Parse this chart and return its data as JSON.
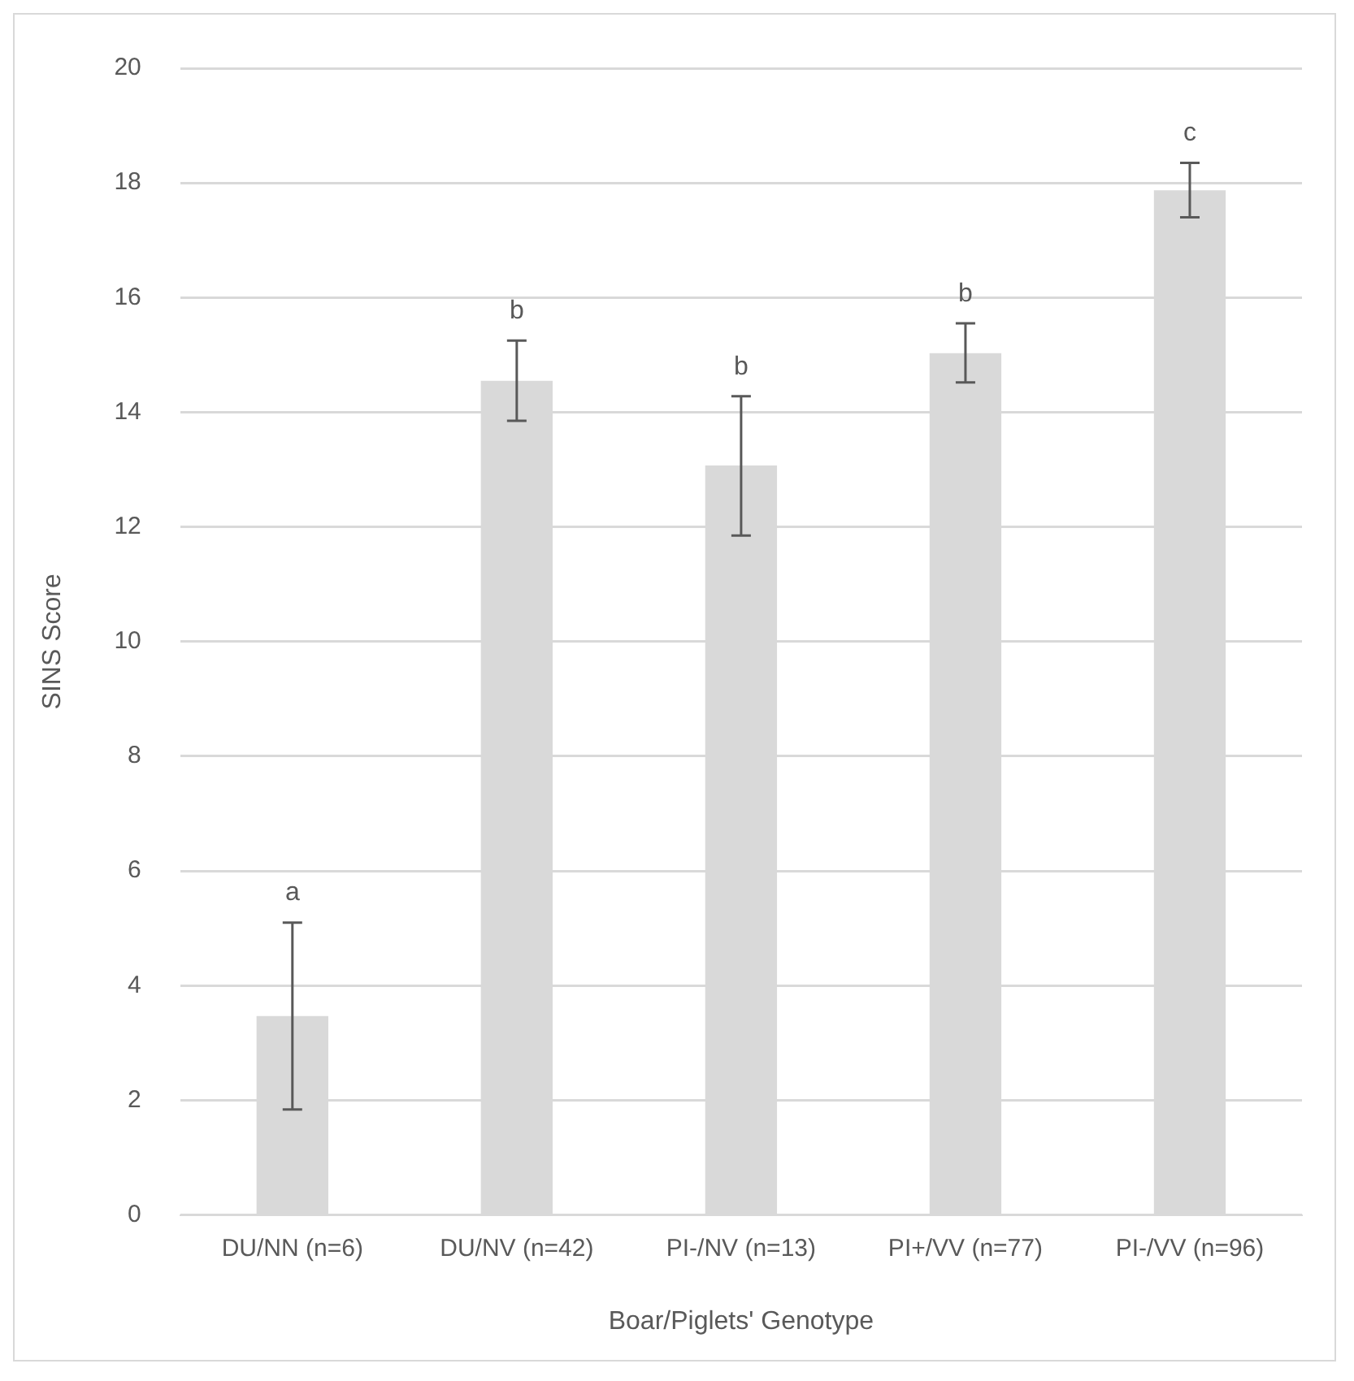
{
  "chart_data": {
    "type": "bar",
    "xlabel": "Boar/Piglets' Genotype",
    "ylabel": "SINS Score",
    "categories": [
      "DU/NN (n=6)",
      "DU/NV (n=42)",
      "PI-/NV (n=13)",
      "PI+/VV (n=77)",
      "PI-/VV (n=96)"
    ],
    "values": [
      3.47,
      14.55,
      13.07,
      15.03,
      17.87
    ],
    "color": "#d9d9d9",
    "errors": [
      [
        1.84,
        5.1
      ],
      [
        13.85,
        15.25
      ],
      [
        11.85,
        14.28
      ],
      [
        14.52,
        15.55
      ],
      [
        17.4,
        18.35
      ]
    ],
    "annotations": [
      "a",
      "b",
      "b",
      "b",
      "c"
    ],
    "ylim": [
      0,
      20
    ],
    "yticks": [
      0,
      2,
      4,
      6,
      8,
      10,
      12,
      14,
      16,
      18,
      20
    ],
    "grid": "y",
    "legend": false
  }
}
